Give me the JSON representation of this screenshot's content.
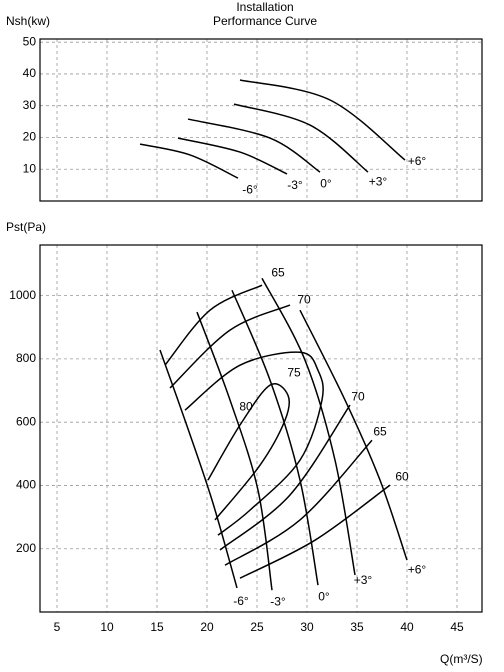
{
  "chart_data": [
    {
      "type": "line",
      "title": "Installation",
      "subtitle": "Performance Curve",
      "y_label": "Nsh(kw)",
      "xlim": [
        3.3,
        47.5
      ],
      "ylim": [
        0,
        51
      ],
      "yticks": [
        10,
        20,
        30,
        40,
        50
      ],
      "grid": true,
      "color": "#000000",
      "series": [
        {
          "name": "-6°",
          "x": [
            13.3,
            18.3,
            23.1
          ],
          "values": [
            17.9,
            14.5,
            7.2
          ]
        },
        {
          "name": "-3°",
          "x": [
            17.1,
            23.3,
            28
          ],
          "values": [
            19.8,
            15.4,
            8.5
          ]
        },
        {
          "name": "0°",
          "x": [
            18.1,
            26.3,
            31.3
          ],
          "values": [
            25.8,
            19.8,
            9.1
          ]
        },
        {
          "name": "+3°",
          "x": [
            22.7,
            30.3,
            36.1
          ],
          "values": [
            30.5,
            23.9,
            9.1
          ]
        },
        {
          "name": "+6°",
          "x": [
            23.3,
            32.3,
            39.8
          ],
          "values": [
            38.1,
            31.8,
            12.9
          ]
        }
      ]
    },
    {
      "type": "line",
      "y_label": "Pst(Pa)",
      "x_label": "Q(m³/S)",
      "xlim": [
        3.3,
        47.5
      ],
      "ylim": [
        0,
        1160
      ],
      "xticks": [
        5,
        10,
        15,
        20,
        25,
        30,
        35,
        40,
        45
      ],
      "yticks": [
        200,
        400,
        600,
        800,
        1000
      ],
      "grid": true,
      "color": "#000000",
      "series": [
        {
          "name": "-6°",
          "x": [
            15.3,
            17.8,
            20.5,
            23
          ],
          "values": [
            828,
            606,
            354,
            76
          ]
        },
        {
          "name": "-3°",
          "x": [
            19,
            22.3,
            25.1,
            26.5
          ],
          "values": [
            948,
            670,
            385,
            69
          ]
        },
        {
          "name": "0°",
          "x": [
            22.5,
            26.3,
            29.3,
            31.1
          ],
          "values": [
            1017,
            733,
            417,
            85
          ]
        },
        {
          "name": "+3°",
          "x": [
            25.5,
            29.8,
            32.8,
            34.8
          ],
          "values": [
            1055,
            796,
            480,
            117
          ]
        },
        {
          "name": "+6°",
          "x": [
            29.3,
            33.8,
            37.3,
            40
          ],
          "values": [
            954,
            670,
            417,
            164
          ]
        },
        {
          "name": "65",
          "x": [
            15.8,
            20.3,
            25.5
          ],
          "values": [
            780,
            954,
            1033
          ]
        },
        {
          "name": "70",
          "x": [
            16.3,
            22.3,
            28.3
          ],
          "values": [
            708,
            891,
            970
          ]
        },
        {
          "name": "75",
          "x": [
            17.8,
            23.3,
            29.3,
            31.1,
            31.5,
            29.3,
            24.3,
            21.1
          ],
          "values": [
            638,
            780,
            821,
            764,
            670,
            480,
            322,
            243
          ]
        },
        {
          "name": "80",
          "x": [
            20.1,
            23.3,
            26.3,
            28.1,
            27.8,
            25.3,
            20.8
          ],
          "values": [
            417,
            591,
            717,
            685,
            606,
            464,
            291
          ]
        },
        {
          "name": "70",
          "x": [
            21.3,
            28.3,
            34.3
          ],
          "values": [
            196,
            370,
            654
          ]
        },
        {
          "name": "65",
          "x": [
            21.8,
            29.3,
            36.5
          ],
          "values": [
            148,
            291,
            543
          ]
        },
        {
          "name": "60",
          "x": [
            23.3,
            30.8,
            38.3
          ],
          "values": [
            107,
            227,
            401
          ]
        }
      ]
    }
  ]
}
